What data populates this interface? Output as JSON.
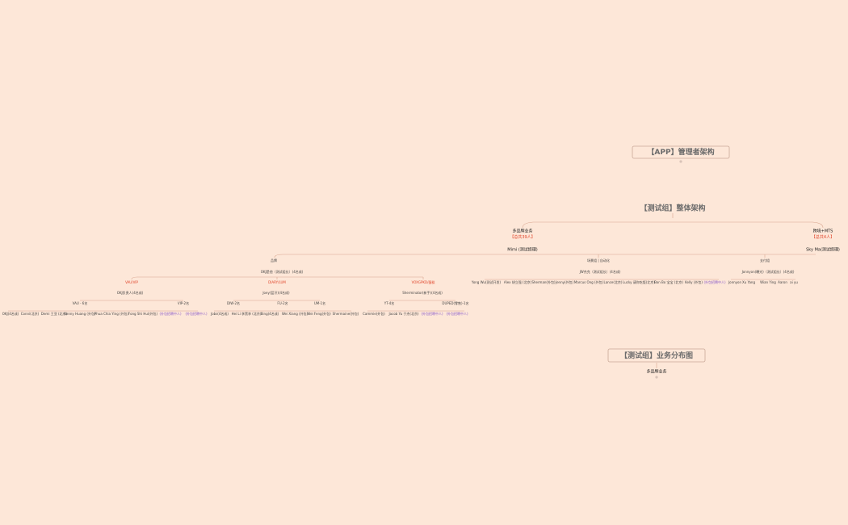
{
  "cards": {
    "app": "【APP】管理者架构",
    "overall": "【测试组】整体架构",
    "distribution": "【测试组】业务分布图"
  },
  "distribution_root": "多品牌业务",
  "branches": [
    {
      "name": "多品牌业务",
      "count": "【总共39人】",
      "manager": "Mimi (测试经理)"
    },
    {
      "name": "跨境+MTS",
      "count": "【总共4人】",
      "manager": "Sky Ma(测试经理)"
    }
  ],
  "groups": [
    {
      "name": "品牌",
      "lead": "OKJ是他（测试组长）(4名成)"
    },
    {
      "name": "场景组 | 自动化",
      "lead": "JW杰克（测试组长）(4名成)"
    },
    {
      "name": "支付组",
      "lead": "Jonnyon(曝光)（测试组长）(4名成)"
    }
  ],
  "brand_lines": [
    {
      "name": "VAU/VIP",
      "owner": "OKJ负责人(4名成)"
    },
    {
      "name": "DIARY/LUM",
      "owner": "Joey(蓝牙)(4名成)"
    },
    {
      "name": "VOXGPKD/蛋糕",
      "owner": "Sherminator(新手)(4名成)"
    }
  ],
  "teams": [
    "VAU - 6名",
    "VIP-2名",
    "DIW-2名",
    "FU-2名",
    "UM-1名",
    "YT-4名",
    "DUPED(零售)-1名"
  ],
  "brand_members": [
    "OKJ(4名成)",
    "Conni(北京)",
    "Demi 王亚 (北京)",
    "Kenny Huang (外包)",
    "Phua Chia Ying (外包)",
    "Fong Shi Hui(外包)",
    "(外包招聘中人)",
    "(外包招聘中人)",
    "Jobs(4名成)",
    "Hei Li 李黑李 (北京)",
    "Bing(4名成)",
    "Wei Xiang (外包)",
    "Wei Feng(外包)",
    "Shermaine(外包)",
    "Cammie(外包)",
    "Jacob Yu 于杰(北京)",
    "(外包招聘中人)",
    "(外包招聘中人)"
  ],
  "scene_members": [
    "Yong Wu(测试开发)",
    "Alex 胡立强 (北京)",
    "Sherman(外包)",
    "Jenny(外包)",
    "Marcus Ong (外包)",
    "Lance(北京)",
    "Lucky 请你吃饭(北京)",
    "Bon Bo 宝宝 (北京)",
    "Kelly (外包)",
    "(外包招聘中人)"
  ],
  "pay_members": [
    "Jonnyon",
    "Xu Yang",
    "Wian Ying",
    "Aaron",
    "ai yu"
  ]
}
